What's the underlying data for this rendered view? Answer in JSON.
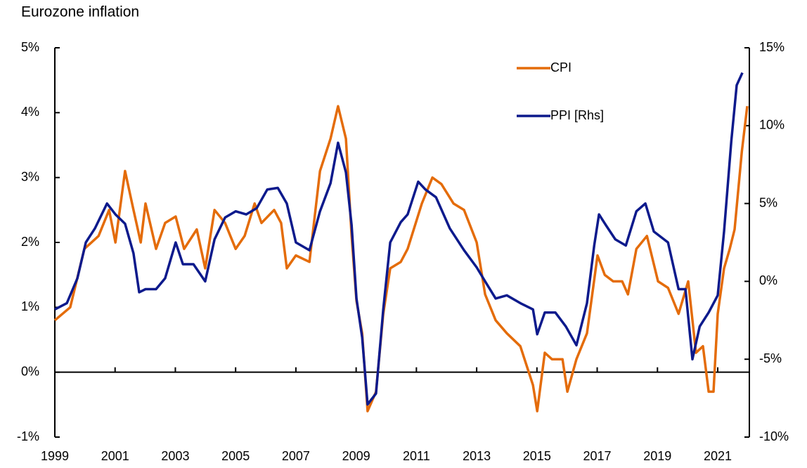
{
  "chart_data": {
    "type": "line",
    "title": "Eurozone inflation",
    "xlim": [
      1999,
      2022.05
    ],
    "xticks": [
      1999,
      2001,
      2003,
      2005,
      2007,
      2009,
      2011,
      2013,
      2015,
      2017,
      2019,
      2021
    ],
    "ylim": [
      -1,
      5
    ],
    "yticks": [
      {
        "value": -1,
        "label": "-1%"
      },
      {
        "value": 0,
        "label": "0%"
      },
      {
        "value": 1,
        "label": "1%"
      },
      {
        "value": 2,
        "label": "2%"
      },
      {
        "value": 3,
        "label": "3%"
      },
      {
        "value": 4,
        "label": "4%"
      },
      {
        "value": 5,
        "label": "5%"
      }
    ],
    "y2lim": [
      -10,
      15
    ],
    "y2ticks": [
      {
        "value": -10,
        "label": "-10%"
      },
      {
        "value": -5,
        "label": "-5%"
      },
      {
        "value": 0,
        "label": "0%"
      },
      {
        "value": 5,
        "label": "5%"
      },
      {
        "value": 10,
        "label": "10%"
      },
      {
        "value": 15,
        "label": "15%"
      }
    ],
    "legend": "upper right",
    "series": [
      {
        "name": "CPI",
        "color": "#e46c0a",
        "x": [
          1999.0,
          1999.51,
          1999.98,
          2000.45,
          2000.8,
          2001.01,
          2001.33,
          2001.61,
          2001.85,
          2002.01,
          2002.36,
          2002.66,
          2003.01,
          2003.29,
          2003.71,
          2003.99,
          2004.3,
          2004.65,
          2005.0,
          2005.3,
          2005.63,
          2005.86,
          2006.28,
          2006.51,
          2006.7,
          2007.0,
          2007.45,
          2007.8,
          2008.15,
          2008.4,
          2008.66,
          2008.85,
          2009.01,
          2009.2,
          2009.38,
          2009.66,
          2009.9,
          2010.13,
          2010.48,
          2010.71,
          2011.18,
          2011.53,
          2011.83,
          2012.23,
          2012.58,
          2013.0,
          2013.28,
          2013.63,
          2014.0,
          2014.45,
          2014.87,
          2015.01,
          2015.26,
          2015.5,
          2015.85,
          2016.01,
          2016.31,
          2016.66,
          2017.01,
          2017.25,
          2017.53,
          2017.83,
          2018.02,
          2018.3,
          2018.65,
          2019.02,
          2019.35,
          2019.7,
          2020.02,
          2020.28,
          2020.51,
          2020.7,
          2020.86,
          2021.0,
          2021.21,
          2021.4,
          2021.56,
          2021.8,
          2021.98
        ],
        "values": [
          0.8,
          1.0,
          1.9,
          2.1,
          2.5,
          2.0,
          3.1,
          2.5,
          2.0,
          2.6,
          1.9,
          2.3,
          2.4,
          1.9,
          2.2,
          1.6,
          2.5,
          2.3,
          1.9,
          2.1,
          2.6,
          2.3,
          2.5,
          2.3,
          1.6,
          1.8,
          1.7,
          3.1,
          3.6,
          4.1,
          3.6,
          2.1,
          1.1,
          0.6,
          -0.6,
          -0.3,
          0.9,
          1.6,
          1.7,
          1.9,
          2.6,
          3.0,
          2.9,
          2.6,
          2.5,
          2.0,
          1.2,
          0.8,
          0.6,
          0.4,
          -0.2,
          -0.6,
          0.3,
          0.2,
          0.2,
          -0.3,
          0.2,
          0.6,
          1.8,
          1.5,
          1.4,
          1.4,
          1.2,
          1.9,
          2.1,
          1.4,
          1.3,
          0.9,
          1.4,
          0.3,
          0.4,
          -0.3,
          -0.3,
          0.9,
          1.6,
          1.9,
          2.2,
          3.4,
          4.1
        ]
      },
      {
        "name": "PPI [Rhs]",
        "color": "#0d1a8c",
        "axis": "y2",
        "x": [
          1999.0,
          1999.4,
          1999.75,
          2000.03,
          2000.33,
          2000.73,
          2001.01,
          2001.33,
          2001.61,
          2001.8,
          2002.01,
          2002.36,
          2002.66,
          2003.01,
          2003.25,
          2003.6,
          2003.99,
          2004.3,
          2004.65,
          2005.0,
          2005.35,
          2005.7,
          2006.05,
          2006.4,
          2006.7,
          2007.0,
          2007.45,
          2007.8,
          2008.15,
          2008.4,
          2008.66,
          2008.85,
          2009.01,
          2009.2,
          2009.38,
          2009.66,
          2009.9,
          2010.13,
          2010.48,
          2010.71,
          2011.06,
          2011.3,
          2011.65,
          2012.11,
          2012.58,
          2013.0,
          2013.28,
          2013.63,
          2014.0,
          2014.45,
          2014.87,
          2015.01,
          2015.26,
          2015.61,
          2015.96,
          2016.31,
          2016.66,
          2016.9,
          2017.06,
          2017.29,
          2017.6,
          2017.95,
          2018.3,
          2018.6,
          2018.88,
          2019.35,
          2019.7,
          2019.93,
          2020.16,
          2020.4,
          2020.7,
          2021.0,
          2021.21,
          2021.45,
          2021.63,
          2021.82
        ],
        "values": [
          -1.8,
          -1.4,
          0.2,
          2.5,
          3.4,
          5.0,
          4.3,
          3.7,
          1.8,
          -0.7,
          -0.5,
          -0.5,
          0.2,
          2.5,
          1.1,
          1.1,
          0.0,
          2.7,
          4.1,
          4.5,
          4.3,
          4.7,
          5.9,
          6.0,
          5.0,
          2.5,
          2.0,
          4.5,
          6.3,
          8.9,
          7.0,
          3.6,
          -1.1,
          -3.6,
          -7.9,
          -7.2,
          -1.8,
          2.5,
          3.8,
          4.3,
          6.4,
          5.9,
          5.4,
          3.4,
          2.0,
          0.9,
          0.0,
          -1.1,
          -0.9,
          -1.4,
          -1.8,
          -3.4,
          -2.0,
          -2.0,
          -2.9,
          -4.1,
          -1.4,
          2.3,
          4.3,
          3.6,
          2.7,
          2.3,
          4.5,
          5.0,
          3.2,
          2.5,
          -0.5,
          -0.5,
          -5.0,
          -2.9,
          -2.0,
          -0.9,
          3.2,
          9.0,
          12.6,
          13.4
        ]
      }
    ]
  }
}
